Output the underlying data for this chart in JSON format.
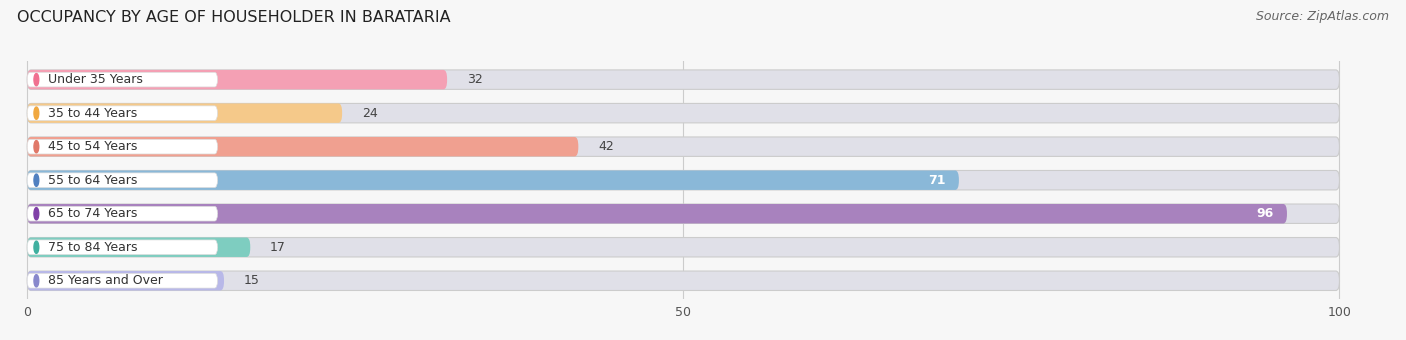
{
  "title": "OCCUPANCY BY AGE OF HOUSEHOLDER IN BARATARIA",
  "source": "Source: ZipAtlas.com",
  "categories": [
    "Under 35 Years",
    "35 to 44 Years",
    "45 to 54 Years",
    "55 to 64 Years",
    "65 to 74 Years",
    "75 to 84 Years",
    "85 Years and Over"
  ],
  "values": [
    32,
    24,
    42,
    71,
    96,
    17,
    15
  ],
  "bar_colors": [
    "#F4A0B4",
    "#F5C98A",
    "#F0A090",
    "#8AB8D8",
    "#A882BE",
    "#7ECDC0",
    "#B8B8E8"
  ],
  "label_colors": [
    "#F07090",
    "#F0A840",
    "#E07868",
    "#5080C0",
    "#8040A8",
    "#40B0A0",
    "#8888CC"
  ],
  "xlim": [
    0,
    100
  ],
  "xticks": [
    0,
    50,
    100
  ],
  "bg_color": "#f7f7f7",
  "bar_bg_color": "#e0e0e8",
  "title_fontsize": 11.5,
  "source_fontsize": 9,
  "label_fontsize": 9,
  "value_fontsize": 9,
  "bar_height": 0.58,
  "figsize": [
    14.06,
    3.4
  ],
  "dpi": 100
}
